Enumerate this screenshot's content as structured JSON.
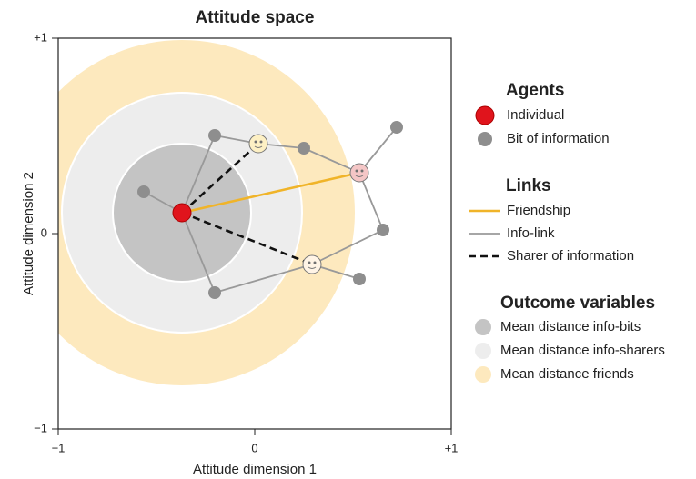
{
  "title": "Attitude space",
  "x_axis": {
    "label": "Attitude dimension 1",
    "ticks": [
      "−1",
      "0",
      "+1"
    ]
  },
  "y_axis": {
    "label": "Attitude dimension 2",
    "ticks": [
      "−1",
      "0",
      "+1"
    ]
  },
  "legend": {
    "agents": {
      "title": "Agents",
      "items": [
        "Individual",
        "Bit of information"
      ]
    },
    "links": {
      "title": "Links",
      "items": [
        "Friendship",
        "Info-link",
        "Sharer of information"
      ]
    },
    "outcomes": {
      "title": "Outcome variables",
      "items": [
        "Mean distance info-bits",
        "Mean distance info-sharers",
        "Mean distance friends"
      ]
    }
  }
}
